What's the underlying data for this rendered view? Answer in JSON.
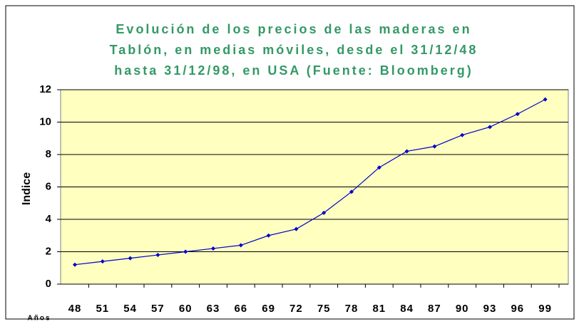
{
  "chart_data": {
    "type": "line",
    "title": [
      "Evolución de los precios de las maderas en",
      "Tablón, en medias móviles, desde el 31/12/48",
      "hasta 31/12/98, en USA (Fuente: Bloomberg)"
    ],
    "y_label": "Indice",
    "x_label": "Años",
    "categories": [
      "48",
      "51",
      "54",
      "57",
      "60",
      "63",
      "66",
      "69",
      "72",
      "75",
      "78",
      "81",
      "84",
      "87",
      "90",
      "93",
      "96",
      "99"
    ],
    "series": [
      {
        "name": "Indice",
        "color": "#0000cc",
        "values": [
          1.2,
          1.4,
          1.6,
          1.8,
          2.0,
          2.2,
          2.4,
          3.0,
          3.4,
          4.4,
          5.7,
          7.2,
          8.2,
          8.5,
          9.2,
          9.7,
          10.5,
          11.4
        ]
      }
    ],
    "ylim": [
      0,
      12
    ],
    "yticks": [
      0,
      2,
      4,
      6,
      8,
      10,
      12
    ],
    "grid": true
  }
}
